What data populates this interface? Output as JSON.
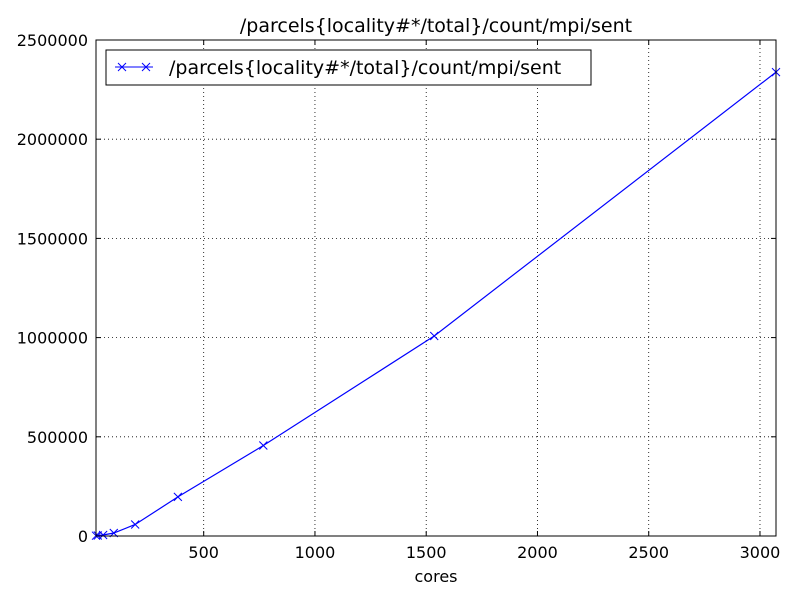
{
  "chart_data": {
    "type": "line",
    "title": "/parcels{locality#*/total}/count/mpi/sent",
    "xlabel": "cores",
    "ylabel": "",
    "xlim": [
      16,
      3072
    ],
    "ylim": [
      0,
      2500000
    ],
    "x_ticks": [
      500,
      1000,
      1500,
      2000,
      2500,
      3000
    ],
    "y_ticks": [
      0,
      500000,
      1000000,
      1500000,
      2000000,
      2500000
    ],
    "x_tick_labels": [
      "500",
      "1000",
      "1500",
      "2000",
      "2500",
      "3000"
    ],
    "y_tick_labels": [
      "0",
      "500000",
      "1000000",
      "1500000",
      "2000000",
      "2500000"
    ],
    "grid": true,
    "legend_position": "top-left",
    "series": [
      {
        "name": "/parcels{locality#*/total}/count/mpi/sent",
        "color": "#0000ff",
        "marker": "x",
        "x": [
          16,
          24,
          48,
          96,
          192,
          384,
          768,
          1536,
          3072
        ],
        "y": [
          1500,
          2500,
          5000,
          15000,
          58000,
          197000,
          456000,
          1008000,
          2338000
        ]
      }
    ]
  }
}
